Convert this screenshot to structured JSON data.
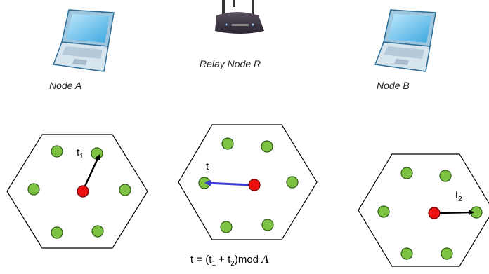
{
  "nodes": {
    "node_a": {
      "label": "Node A"
    },
    "relay": {
      "label": "Relay Node R"
    },
    "node_b": {
      "label": "Node B"
    }
  },
  "lattices": {
    "left": {
      "vector_label": "t",
      "vector_subscript": "1"
    },
    "middle": {
      "vector_label": "t"
    },
    "right": {
      "vector_label": "t",
      "vector_subscript": "2"
    }
  },
  "formula": {
    "lhs": "t",
    "eq": " = ",
    "open": "(t",
    "sub1": "1",
    "plus": " + t",
    "sub2": "2",
    "close": ")mod ",
    "lattice_symbol": "Λ"
  },
  "colors": {
    "lattice_point": "#7dc242",
    "origin_point": "#ee1111",
    "relay_vector": "#3a3ad0",
    "node_vector": "#000000",
    "hexagon_stroke": "#000000"
  },
  "icons": [
    "laptop-icon",
    "wireless-router-icon",
    "laptop-icon"
  ]
}
